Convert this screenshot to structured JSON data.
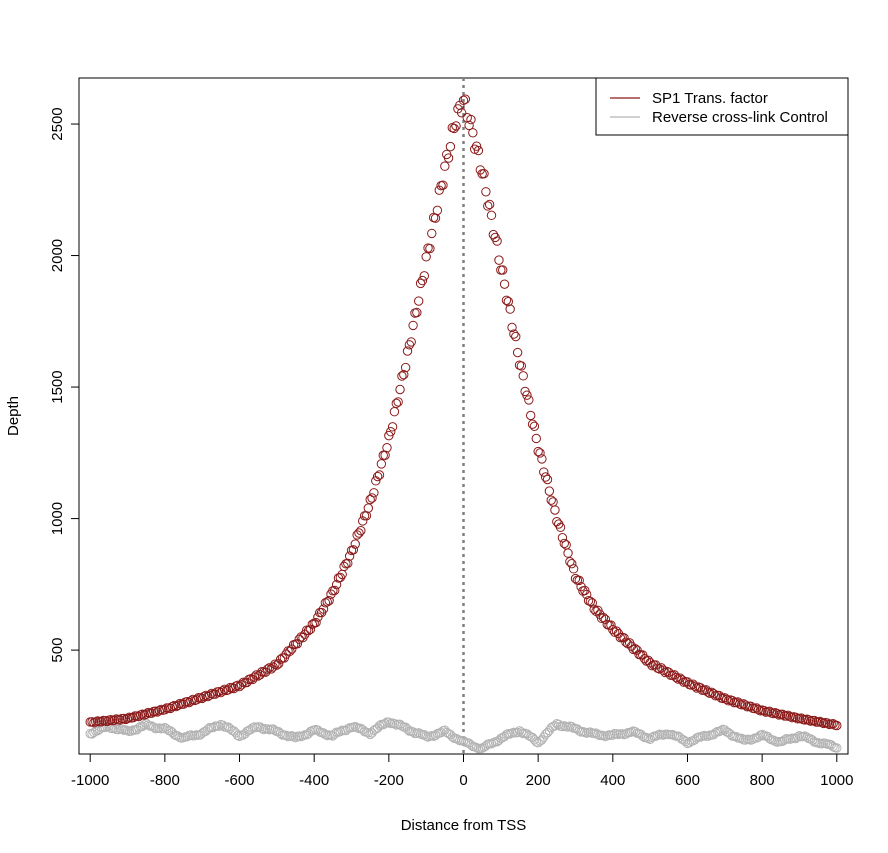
{
  "chart_data": {
    "type": "scatter",
    "title": "",
    "xlabel": "Distance from TSS",
    "ylabel": "Depth",
    "xlim": [
      -1030,
      1030
    ],
    "ylim": [
      105,
      2675
    ],
    "x_ticks": [
      -1000,
      -800,
      -600,
      -400,
      -200,
      0,
      200,
      400,
      600,
      800,
      1000
    ],
    "x_tick_labels": [
      "-1000",
      "-800",
      "-600",
      "-400",
      "-200",
      "0",
      "200",
      "400",
      "600",
      "800",
      "1000"
    ],
    "y_ticks": [
      500,
      1000,
      1500,
      2000,
      2500
    ],
    "y_tick_labels": [
      "500",
      "1000",
      "1500",
      "2000",
      "2500"
    ],
    "grid": false,
    "legend_position": "top-right",
    "reference_line": {
      "x": 0,
      "style": "dotted",
      "color": "#808080"
    },
    "x_step": 5,
    "series": [
      {
        "name": "SP1 Trans. factor",
        "color": "#8b1a1a",
        "marker": "open-circle",
        "anchors": [
          [
            -1000,
            225
          ],
          [
            -900,
            240
          ],
          [
            -800,
            275
          ],
          [
            -700,
            320
          ],
          [
            -600,
            365
          ],
          [
            -500,
            445
          ],
          [
            -400,
            600
          ],
          [
            -350,
            720
          ],
          [
            -300,
            870
          ],
          [
            -250,
            1060
          ],
          [
            -200,
            1300
          ],
          [
            -150,
            1620
          ],
          [
            -100,
            1980
          ],
          [
            -50,
            2330
          ],
          [
            -20,
            2520
          ],
          [
            0,
            2590
          ],
          [
            20,
            2490
          ],
          [
            50,
            2320
          ],
          [
            100,
            1960
          ],
          [
            150,
            1600
          ],
          [
            200,
            1270
          ],
          [
            250,
            1000
          ],
          [
            300,
            780
          ],
          [
            350,
            660
          ],
          [
            400,
            580
          ],
          [
            500,
            450
          ],
          [
            600,
            375
          ],
          [
            700,
            315
          ],
          [
            800,
            270
          ],
          [
            900,
            240
          ],
          [
            1000,
            215
          ]
        ]
      },
      {
        "name": "Reverse cross-link Control",
        "color": "#b3b3b3",
        "marker": "open-circle",
        "anchors": [
          [
            -1000,
            185
          ],
          [
            -950,
            210
          ],
          [
            -900,
            190
          ],
          [
            -850,
            215
          ],
          [
            -800,
            200
          ],
          [
            -750,
            165
          ],
          [
            -700,
            185
          ],
          [
            -650,
            220
          ],
          [
            -600,
            175
          ],
          [
            -550,
            210
          ],
          [
            -500,
            190
          ],
          [
            -450,
            165
          ],
          [
            -400,
            195
          ],
          [
            -350,
            175
          ],
          [
            -300,
            210
          ],
          [
            -250,
            185
          ],
          [
            -200,
            230
          ],
          [
            -150,
            200
          ],
          [
            -100,
            170
          ],
          [
            -50,
            190
          ],
          [
            0,
            150
          ],
          [
            50,
            125
          ],
          [
            100,
            165
          ],
          [
            150,
            195
          ],
          [
            200,
            150
          ],
          [
            250,
            220
          ],
          [
            300,
            200
          ],
          [
            350,
            180
          ],
          [
            400,
            175
          ],
          [
            450,
            190
          ],
          [
            500,
            165
          ],
          [
            550,
            185
          ],
          [
            600,
            150
          ],
          [
            650,
            175
          ],
          [
            700,
            195
          ],
          [
            750,
            155
          ],
          [
            800,
            175
          ],
          [
            850,
            150
          ],
          [
            900,
            175
          ],
          [
            950,
            150
          ],
          [
            1000,
            130
          ]
        ]
      }
    ]
  }
}
